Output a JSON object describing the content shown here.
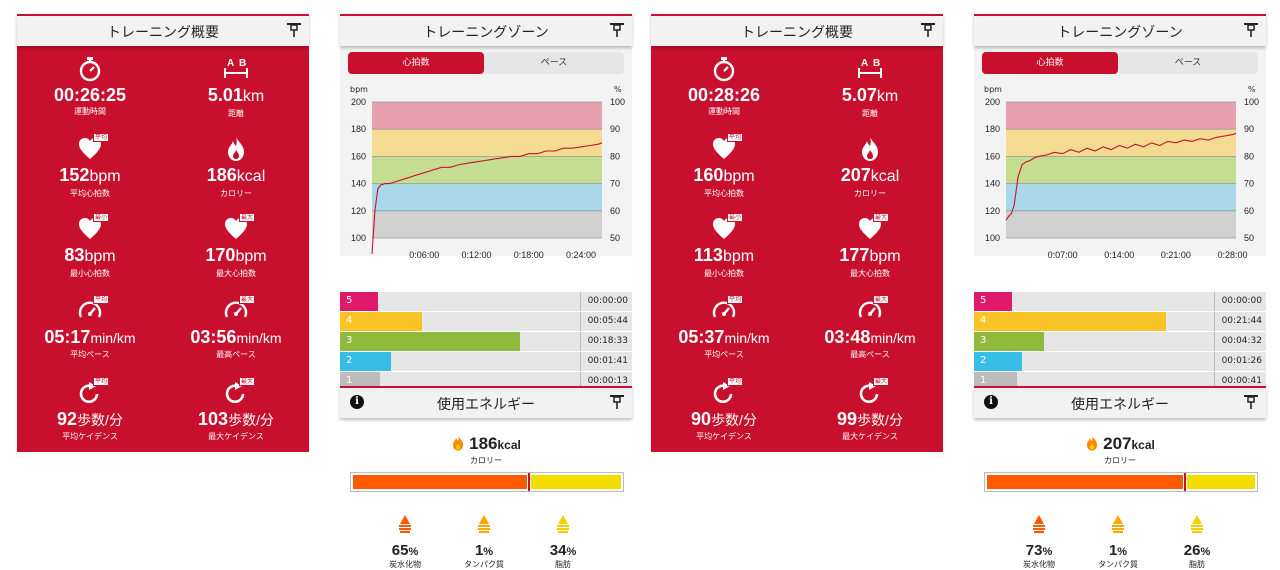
{
  "icons": {
    "pin": "pin-icon",
    "stopwatch": "stopwatch-icon",
    "distance": "distance-icon",
    "heart": "heart-icon",
    "flame": "flame-icon",
    "gauge": "speedometer-icon",
    "cadence": "cadence-icon",
    "info": "info-icon"
  },
  "colors": {
    "brand": "#c8102e",
    "zone5": "#e8a0b0",
    "zone4": "#f3dc8f",
    "zone3": "#c4dd90",
    "zone2": "#a9d8ea",
    "zone1": "#d0d0d0"
  },
  "summary_title": "トレーニング概要",
  "zone_title": "トレーニングゾーン",
  "energy_title": "使用エネルギー",
  "tabs": [
    "心拍数",
    "ペース"
  ],
  "bpm_label": "bpm",
  "pct_label": "%",
  "badges": {
    "avg": "平均",
    "min": "最小",
    "max": "最大"
  },
  "summaries": [
    {
      "items": [
        {
          "value": "00:26:25",
          "unit": "",
          "label": "運動時間"
        },
        {
          "value": "5.01",
          "unit": "km",
          "label": "距離"
        },
        {
          "value": "152",
          "unit": "bpm",
          "label": "平均心拍数"
        },
        {
          "value": "186",
          "unit": "kcal",
          "label": "カロリー"
        },
        {
          "value": "83",
          "unit": "bpm",
          "label": "最小心拍数"
        },
        {
          "value": "170",
          "unit": "bpm",
          "label": "最大心拍数"
        },
        {
          "value": "05:17",
          "unit": "min/km",
          "label": "平均ペース"
        },
        {
          "value": "03:56",
          "unit": "min/km",
          "label": "最高ペース"
        },
        {
          "value": "92",
          "unit": "歩数/分",
          "label": "平均ケイデンス"
        },
        {
          "value": "103",
          "unit": "歩数/分",
          "label": "最大ケイデンス"
        }
      ]
    },
    {
      "items": [
        {
          "value": "00:28:26",
          "unit": "",
          "label": "運動時間"
        },
        {
          "value": "5.07",
          "unit": "km",
          "label": "距離"
        },
        {
          "value": "160",
          "unit": "bpm",
          "label": "平均心拍数"
        },
        {
          "value": "207",
          "unit": "kcal",
          "label": "カロリー"
        },
        {
          "value": "113",
          "unit": "bpm",
          "label": "最小心拍数"
        },
        {
          "value": "177",
          "unit": "bpm",
          "label": "最大心拍数"
        },
        {
          "value": "05:37",
          "unit": "min/km",
          "label": "平均ペース"
        },
        {
          "value": "03:48",
          "unit": "min/km",
          "label": "最高ペース"
        },
        {
          "value": "90",
          "unit": "歩数/分",
          "label": "平均ケイデンス"
        },
        {
          "value": "99",
          "unit": "歩数/分",
          "label": "最大ケイデンス"
        }
      ]
    }
  ],
  "zones": [
    {
      "zone_rows": [
        {
          "zone": "5",
          "time": "00:00:00",
          "fraction": 0.0
        },
        {
          "zone": "4",
          "time": "00:05:44",
          "fraction": 0.217
        },
        {
          "zone": "3",
          "time": "00:18:33",
          "fraction": 0.702
        },
        {
          "zone": "2",
          "time": "00:01:41",
          "fraction": 0.064
        },
        {
          "zone": "1",
          "time": "00:00:13",
          "fraction": 0.008
        }
      ],
      "energy": {
        "kcal": "186",
        "unit": "kcal",
        "label": "カロリー",
        "nutrients": [
          {
            "value": "65",
            "unit": "%",
            "label": "炭水化物",
            "fraction": 0.65
          },
          {
            "value": "1",
            "unit": "%",
            "label": "タンパク質",
            "fraction": 0.01
          },
          {
            "value": "34",
            "unit": "%",
            "label": "脂肪",
            "fraction": 0.34
          }
        ]
      }
    },
    {
      "zone_rows": [
        {
          "zone": "5",
          "time": "00:00:00",
          "fraction": 0.0
        },
        {
          "zone": "4",
          "time": "00:21:44",
          "fraction": 0.764
        },
        {
          "zone": "3",
          "time": "00:04:32",
          "fraction": 0.16
        },
        {
          "zone": "2",
          "time": "00:01:26",
          "fraction": 0.05
        },
        {
          "zone": "1",
          "time": "00:00:41",
          "fraction": 0.024
        }
      ],
      "energy": {
        "kcal": "207",
        "unit": "kcal",
        "label": "カロリー",
        "nutrients": [
          {
            "value": "73",
            "unit": "%",
            "label": "炭水化物",
            "fraction": 0.73
          },
          {
            "value": "1",
            "unit": "%",
            "label": "タンパク質",
            "fraction": 0.01
          },
          {
            "value": "26",
            "unit": "%",
            "label": "脂肪",
            "fraction": 0.26
          }
        ]
      }
    }
  ],
  "chart_data": [
    {
      "type": "line",
      "ylabel": "bpm",
      "y2label": "%",
      "ylim": [
        90,
        200
      ],
      "y_ticks": [
        100,
        120,
        140,
        160,
        180,
        200
      ],
      "y2_ticks": [
        50,
        60,
        70,
        80,
        90,
        100
      ],
      "x_ticks": [
        "0:06:00",
        "0:12:00",
        "0:18:00",
        "0:24:00"
      ],
      "x_tick_seconds": [
        360,
        720,
        1080,
        1440
      ],
      "xlim": [
        0,
        1585
      ],
      "zone_bands": [
        [
          100,
          120
        ],
        [
          120,
          140
        ],
        [
          140,
          160
        ],
        [
          160,
          180
        ],
        [
          180,
          200
        ]
      ],
      "series": [
        {
          "x": [
            0,
            20,
            40,
            60,
            90,
            120,
            180,
            240,
            300,
            360,
            420,
            480,
            540,
            600,
            660,
            720,
            780,
            840,
            900,
            960,
            1020,
            1080,
            1140,
            1200,
            1260,
            1320,
            1380,
            1440,
            1500,
            1560,
            1585
          ],
          "y": [
            85,
            120,
            136,
            139,
            140,
            140,
            142,
            144,
            146,
            148,
            150,
            152,
            152,
            154,
            155,
            156,
            157,
            158,
            159,
            160,
            160,
            162,
            162,
            164,
            164,
            166,
            166,
            167,
            168,
            169,
            170
          ]
        }
      ]
    },
    {
      "type": "line",
      "ylabel": "bpm",
      "y2label": "%",
      "ylim": [
        100,
        200
      ],
      "y_ticks": [
        100,
        120,
        140,
        160,
        180,
        200
      ],
      "y2_ticks": [
        50,
        60,
        70,
        80,
        90,
        100
      ],
      "x_ticks": [
        "0:07:00",
        "0:14:00",
        "0:21:00",
        "0:28:00"
      ],
      "x_tick_seconds": [
        420,
        840,
        1260,
        1680
      ],
      "xlim": [
        0,
        1706
      ],
      "zone_bands": [
        [
          100,
          120
        ],
        [
          120,
          140
        ],
        [
          140,
          160
        ],
        [
          160,
          180
        ],
        [
          180,
          200
        ]
      ],
      "series": [
        {
          "x": [
            0,
            20,
            40,
            60,
            90,
            120,
            150,
            180,
            210,
            240,
            300,
            360,
            420,
            480,
            540,
            600,
            660,
            720,
            780,
            840,
            900,
            960,
            1020,
            1080,
            1140,
            1200,
            1260,
            1320,
            1380,
            1440,
            1500,
            1560,
            1620,
            1680,
            1706
          ],
          "y": [
            113,
            116,
            118,
            124,
            145,
            154,
            156,
            157,
            159,
            160,
            161,
            163,
            162,
            165,
            163,
            166,
            164,
            167,
            165,
            168,
            166,
            169,
            167,
            170,
            168,
            171,
            170,
            172,
            171,
            173,
            172,
            174,
            175,
            176,
            177
          ]
        }
      ]
    }
  ]
}
